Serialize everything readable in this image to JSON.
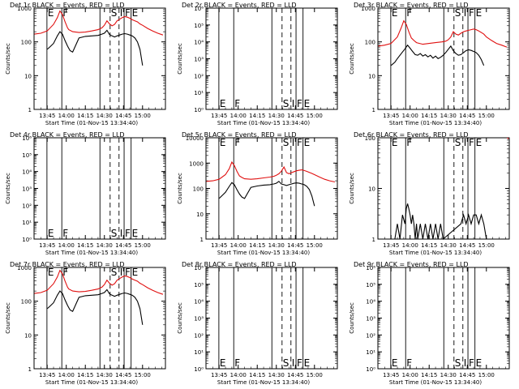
{
  "figure": {
    "ylabel": "Counts/sec",
    "xlabel_template": "Start Time (01-Nov-15 13:34:40)",
    "x_ticks": [
      "13:45",
      "14:00",
      "14:15",
      "14:30",
      "14:45",
      "15:00"
    ],
    "x_tick_minutes": [
      45,
      60,
      75,
      90,
      105,
      120
    ],
    "x_range_minutes": [
      34.67,
      138.0
    ],
    "markers": {
      "solid": [
        {
          "t": 44.8,
          "label": "E"
        },
        {
          "t": 56.5,
          "label": "F"
        },
        {
          "t": 86.5,
          "label": ""
        },
        {
          "t": 105.5,
          "label": "F"
        },
        {
          "t": 111.0,
          "label": "E"
        }
      ],
      "dashed": [
        {
          "t": 94.5,
          "label": "S"
        },
        {
          "t": 101.5,
          "label": "I"
        }
      ],
      "label_order": [
        "E",
        "F",
        "S",
        "I",
        "F",
        "E"
      ]
    },
    "colors": {
      "events": "#000000",
      "lld": "#e01010"
    }
  },
  "chart_data": [
    {
      "type": "line",
      "title": "Det 1r BLACK = Events, RED = LLD",
      "yscale": "log",
      "ylim": [
        1,
        1000
      ],
      "yticks": [
        "1",
        "10",
        "100",
        "1000"
      ],
      "has_data": true,
      "series": [
        {
          "name": "LLD",
          "color": "#e01010",
          "x": [
            35,
            40,
            45,
            50,
            53,
            55,
            57,
            59,
            61,
            62,
            65,
            70,
            75,
            80,
            85,
            88,
            90,
            92,
            94,
            96,
            98,
            100,
            102,
            104,
            106,
            108,
            110,
            112,
            114,
            116,
            118,
            120,
            124,
            128,
            132,
            136
          ],
          "y": [
            170,
            180,
            210,
            330,
            520,
            820,
            650,
            400,
            260,
            230,
            200,
            190,
            195,
            210,
            230,
            260,
            310,
            420,
            340,
            300,
            330,
            420,
            470,
            520,
            560,
            540,
            500,
            450,
            420,
            390,
            340,
            310,
            250,
            210,
            180,
            160
          ]
        },
        {
          "name": "Events",
          "color": "#000000",
          "x": [
            45,
            47,
            50,
            53,
            55,
            57,
            59,
            61,
            63,
            65,
            70,
            75,
            80,
            85,
            86,
            88,
            90,
            92,
            94,
            96,
            98,
            100,
            102,
            104,
            106,
            108,
            110,
            112,
            114,
            116,
            118,
            120
          ],
          "y": [
            60,
            70,
            90,
            150,
            200,
            170,
            110,
            75,
            55,
            50,
            130,
            145,
            150,
            155,
            160,
            170,
            180,
            220,
            165,
            150,
            140,
            150,
            160,
            170,
            175,
            170,
            160,
            150,
            130,
            100,
            60,
            20
          ]
        }
      ]
    },
    {
      "type": "line",
      "title": "Det 2r BLACK = Events, RED = LLD",
      "yscale": "log",
      "ylim": [
        1,
        1000000
      ],
      "yticks": [
        "10⁰",
        "10¹",
        "10²",
        "10³",
        "10⁴",
        "10⁵",
        "10⁶"
      ],
      "has_data": false,
      "series": []
    },
    {
      "type": "line",
      "title": "Det 3r BLACK = Events, RED = LLD",
      "yscale": "log",
      "ylim": [
        1,
        1000
      ],
      "yticks": [
        "1",
        "10",
        "100",
        "1000"
      ],
      "has_data": true,
      "series": [
        {
          "name": "LLD",
          "color": "#e01010",
          "x": [
            35,
            40,
            45,
            50,
            53,
            55,
            57,
            59,
            61,
            63,
            65,
            70,
            75,
            80,
            85,
            88,
            90,
            92,
            94,
            96,
            98,
            100,
            102,
            104,
            106,
            108,
            110,
            112,
            114,
            116,
            118,
            120,
            124,
            128,
            132,
            136
          ],
          "y": [
            75,
            80,
            90,
            140,
            260,
            420,
            330,
            200,
            130,
            110,
            95,
            85,
            90,
            95,
            100,
            105,
            115,
            140,
            200,
            170,
            160,
            180,
            200,
            210,
            220,
            230,
            240,
            230,
            210,
            190,
            170,
            140,
            110,
            90,
            80,
            70
          ]
        },
        {
          "name": "Events",
          "color": "#000000",
          "x": [
            45,
            48,
            50,
            52,
            54,
            56,
            58,
            60,
            62,
            64,
            66,
            68,
            70,
            72,
            74,
            76,
            78,
            80,
            82,
            84,
            86,
            88,
            90,
            92,
            94,
            96,
            98,
            100,
            102,
            104,
            106,
            108,
            110,
            112,
            114,
            116,
            118
          ],
          "y": [
            20,
            25,
            32,
            40,
            50,
            62,
            80,
            65,
            52,
            42,
            40,
            45,
            38,
            42,
            36,
            40,
            33,
            38,
            32,
            35,
            40,
            48,
            60,
            75,
            55,
            45,
            40,
            42,
            48,
            55,
            58,
            56,
            52,
            48,
            40,
            30,
            20
          ]
        }
      ]
    },
    {
      "type": "line",
      "title": "Det 4r BLACK = Events, RED = LLD",
      "yscale": "log",
      "ylim": [
        1,
        1000000
      ],
      "yticks": [
        "10⁰",
        "10¹",
        "10²",
        "10³",
        "10⁴",
        "10⁵",
        "10⁶"
      ],
      "has_data": false,
      "series": []
    },
    {
      "type": "line",
      "title": "Det 5r BLACK = Events, RED = LLD",
      "yscale": "log",
      "ylim": [
        1,
        10000
      ],
      "yticks": [
        "1",
        "10",
        "100",
        "1000",
        "10000"
      ],
      "has_data": true,
      "series": [
        {
          "name": "LLD",
          "color": "#e01010",
          "x": [
            35,
            40,
            45,
            50,
            53,
            55,
            57,
            59,
            61,
            63,
            65,
            70,
            75,
            80,
            85,
            88,
            90,
            92,
            94,
            96,
            98,
            100,
            102,
            104,
            106,
            108,
            110,
            112,
            114,
            116,
            118,
            120,
            124,
            128,
            132,
            136
          ],
          "y": [
            190,
            200,
            230,
            350,
            600,
            1100,
            800,
            480,
            310,
            270,
            240,
            230,
            240,
            260,
            280,
            300,
            330,
            380,
            480,
            700,
            420,
            380,
            420,
            460,
            500,
            520,
            540,
            510,
            470,
            430,
            390,
            350,
            280,
            230,
            200,
            180
          ]
        },
        {
          "name": "Events",
          "color": "#000000",
          "x": [
            45,
            47,
            50,
            53,
            55,
            57,
            59,
            61,
            63,
            65,
            70,
            75,
            80,
            85,
            86,
            88,
            90,
            92,
            94,
            96,
            98,
            100,
            102,
            104,
            106,
            108,
            110,
            112,
            114,
            116,
            118,
            120
          ],
          "y": [
            40,
            50,
            70,
            120,
            170,
            140,
            90,
            60,
            45,
            40,
            110,
            125,
            135,
            140,
            145,
            150,
            160,
            190,
            150,
            140,
            130,
            140,
            150,
            160,
            165,
            160,
            150,
            140,
            120,
            90,
            50,
            20
          ]
        }
      ]
    },
    {
      "type": "line",
      "title": "Det 6r BLACK = Events, RED = LLD",
      "yscale": "log",
      "ylim": [
        1,
        100
      ],
      "yticks": [
        "1",
        "10",
        "100"
      ],
      "has_data": true,
      "series": [
        {
          "name": "Events",
          "color": "#000000",
          "x": [
            48,
            50,
            52,
            54,
            56,
            57,
            58,
            59,
            60,
            61,
            62,
            63,
            64,
            65,
            66,
            68,
            70,
            72,
            74,
            76,
            78,
            80,
            82,
            84,
            86,
            100,
            102,
            104,
            106,
            108,
            110,
            112,
            114,
            116,
            118,
            120
          ],
          "y": [
            1,
            2,
            1,
            3,
            2,
            4,
            5,
            4,
            3,
            2,
            3,
            2,
            1,
            2,
            1,
            2,
            1,
            2,
            1,
            2,
            1,
            2,
            1,
            2,
            1,
            2,
            3,
            2,
            3,
            2,
            3,
            3,
            2,
            3,
            2,
            1
          ]
        },
        {
          "name": "LLD",
          "color": "#e01010",
          "x": [
            136.5,
            137.5
          ],
          "y": [
            100,
            95
          ]
        }
      ]
    },
    {
      "type": "line",
      "title": "Det 7r BLACK = Events, RED = LLD",
      "yscale": "log",
      "ylim": [
        1,
        1000
      ],
      "yticks": [
        "1",
        "10",
        "100",
        "1000"
      ],
      "has_data": true,
      "series": [
        {
          "name": "LLD",
          "color": "#e01010",
          "x": [
            35,
            40,
            45,
            50,
            53,
            55,
            57,
            59,
            61,
            62,
            65,
            70,
            75,
            80,
            85,
            88,
            90,
            92,
            94,
            96,
            98,
            100,
            102,
            104,
            106,
            108,
            110,
            112,
            114,
            116,
            118,
            120,
            124,
            128,
            132,
            136
          ],
          "y": [
            170,
            180,
            210,
            330,
            520,
            820,
            650,
            400,
            260,
            230,
            200,
            190,
            195,
            210,
            230,
            260,
            310,
            420,
            340,
            300,
            330,
            420,
            470,
            520,
            560,
            540,
            500,
            450,
            420,
            390,
            340,
            310,
            250,
            210,
            180,
            160
          ]
        },
        {
          "name": "Events",
          "color": "#000000",
          "x": [
            45,
            47,
            50,
            53,
            55,
            57,
            59,
            61,
            63,
            65,
            70,
            75,
            80,
            85,
            86,
            88,
            90,
            92,
            94,
            96,
            98,
            100,
            102,
            104,
            106,
            108,
            110,
            112,
            114,
            116,
            118,
            120
          ],
          "y": [
            60,
            70,
            90,
            150,
            200,
            170,
            110,
            75,
            55,
            50,
            130,
            145,
            150,
            155,
            160,
            170,
            180,
            220,
            165,
            150,
            140,
            150,
            160,
            170,
            175,
            170,
            160,
            150,
            130,
            100,
            60,
            20
          ]
        }
      ]
    },
    {
      "type": "line",
      "title": "Det 8r BLACK = Events, RED = LLD",
      "yscale": "log",
      "ylim": [
        1,
        1000000
      ],
      "yticks": [
        "10⁰",
        "10¹",
        "10²",
        "10³",
        "10⁴",
        "10⁵",
        "10⁶"
      ],
      "has_data": false,
      "series": []
    },
    {
      "type": "line",
      "title": "Det 9r BLACK = Events, RED = LLD",
      "yscale": "log",
      "ylim": [
        1,
        1000000
      ],
      "yticks": [
        "10⁰",
        "10¹",
        "10²",
        "10³",
        "10⁴",
        "10⁵",
        "10⁶"
      ],
      "has_data": false,
      "series": []
    }
  ]
}
